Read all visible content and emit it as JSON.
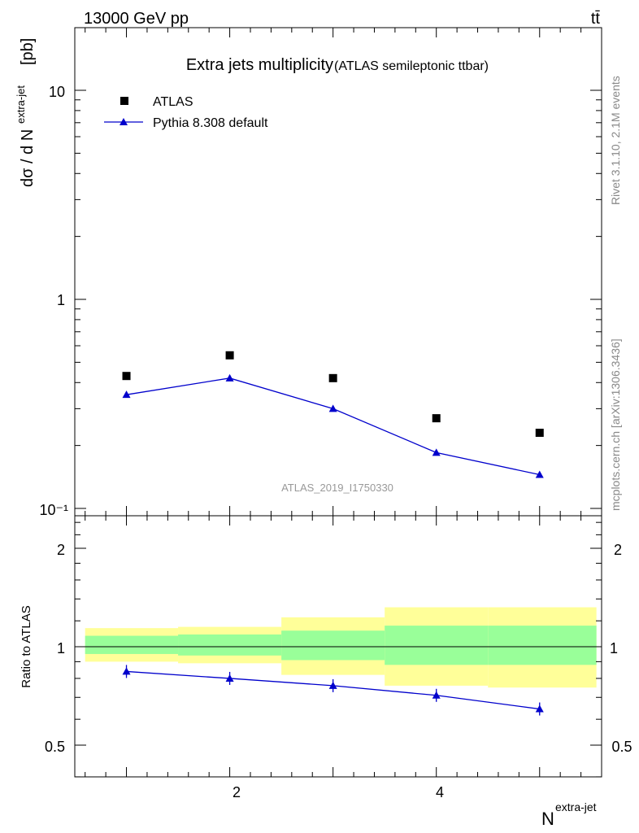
{
  "header": {
    "energy_label": "13000 GeV pp",
    "process_label": "tt̄"
  },
  "side_labels": {
    "rivet": "Rivet 3.1.10,  2.1M events",
    "mcplots": "mcplots.cern.ch [arXiv:1306.3436]"
  },
  "chart_data": [
    {
      "type": "scatter",
      "panel": "main",
      "title": "Extra jets multiplicity",
      "subtitle": "(ATLAS semileptonic ttbar)",
      "ylabel_main": "dσ / d N",
      "ylabel_sup": "extra-jet",
      "ylabel_unit": "[pb]",
      "yscale": "log",
      "ylim": [
        0.1,
        20
      ],
      "xlim": [
        0.5,
        5.6
      ],
      "y_tick_labels": [
        "10⁻¹",
        "1",
        "10"
      ],
      "watermark": "ATLAS_2019_I1750330",
      "legend_position": "top-left",
      "series": [
        {
          "name": "ATLAS",
          "color": "#000000",
          "marker": "square",
          "x": [
            1,
            2,
            3,
            4,
            5
          ],
          "y": [
            0.43,
            0.54,
            0.42,
            0.27,
            0.23
          ]
        },
        {
          "name": "Pythia 8.308 default",
          "color": "#0000cc",
          "marker": "triangle",
          "x": [
            1,
            2,
            3,
            4,
            5
          ],
          "y": [
            0.35,
            0.42,
            0.3,
            0.185,
            0.145
          ]
        }
      ]
    },
    {
      "type": "line",
      "panel": "ratio",
      "ylabel": "Ratio to ATLAS",
      "ylim": [
        0.4,
        2.5
      ],
      "y_tick_labels": [
        "0.5",
        "1",
        "2"
      ],
      "xlim": [
        0.5,
        5.6
      ],
      "x_tick_labels": [
        "2",
        "4"
      ],
      "xlabel_main": "N",
      "xlabel_sup": "extra-jet",
      "uncertainty_bands": [
        {
          "x_low": 0.6,
          "x_high": 1.5,
          "inner": [
            0.95,
            1.08
          ],
          "outer": [
            0.9,
            1.14
          ]
        },
        {
          "x_low": 1.5,
          "x_high": 2.5,
          "inner": [
            0.94,
            1.09
          ],
          "outer": [
            0.89,
            1.15
          ]
        },
        {
          "x_low": 2.5,
          "x_high": 3.5,
          "inner": [
            0.91,
            1.12
          ],
          "outer": [
            0.82,
            1.23
          ]
        },
        {
          "x_low": 3.5,
          "x_high": 4.5,
          "inner": [
            0.88,
            1.16
          ],
          "outer": [
            0.76,
            1.32
          ]
        },
        {
          "x_low": 4.5,
          "x_high": 5.55,
          "inner": [
            0.88,
            1.16
          ],
          "outer": [
            0.75,
            1.32
          ]
        }
      ],
      "series": [
        {
          "name": "Pythia 8.308 default",
          "color": "#0000cc",
          "marker": "triangle",
          "x": [
            1,
            2,
            3,
            4,
            5
          ],
          "y": [
            0.84,
            0.8,
            0.76,
            0.71,
            0.645
          ]
        }
      ]
    }
  ]
}
